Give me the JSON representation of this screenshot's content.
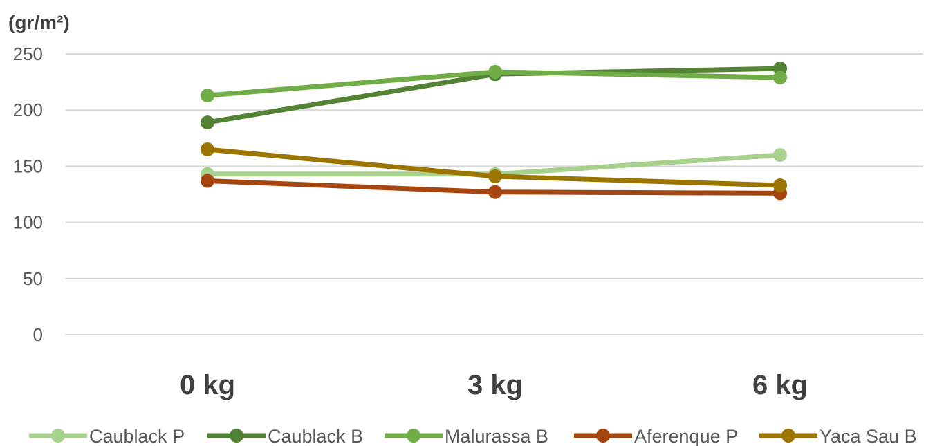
{
  "chart_data": {
    "type": "line",
    "title": "",
    "ylabel": "(gr/m²)",
    "xlabel": "",
    "categories": [
      "0 kg",
      "3 kg",
      "6 kg"
    ],
    "ylim": [
      0,
      250
    ],
    "yticks": [
      0,
      50,
      100,
      150,
      200,
      250
    ],
    "grid": true,
    "legend": "bottom",
    "series": [
      {
        "name": "Caublack P",
        "color": "#a9d18e",
        "values": [
          143,
          143,
          160
        ]
      },
      {
        "name": "Caublack B",
        "color": "#548235",
        "values": [
          189,
          232,
          237
        ]
      },
      {
        "name": "Malurassa B",
        "color": "#70ad47",
        "values": [
          213,
          234,
          229
        ]
      },
      {
        "name": "Aferenque P",
        "color": "#a5450f",
        "values": [
          137,
          127,
          126
        ]
      },
      {
        "name": "Yaca Sau B",
        "color": "#9c7400",
        "values": [
          165,
          141,
          133
        ]
      }
    ]
  }
}
